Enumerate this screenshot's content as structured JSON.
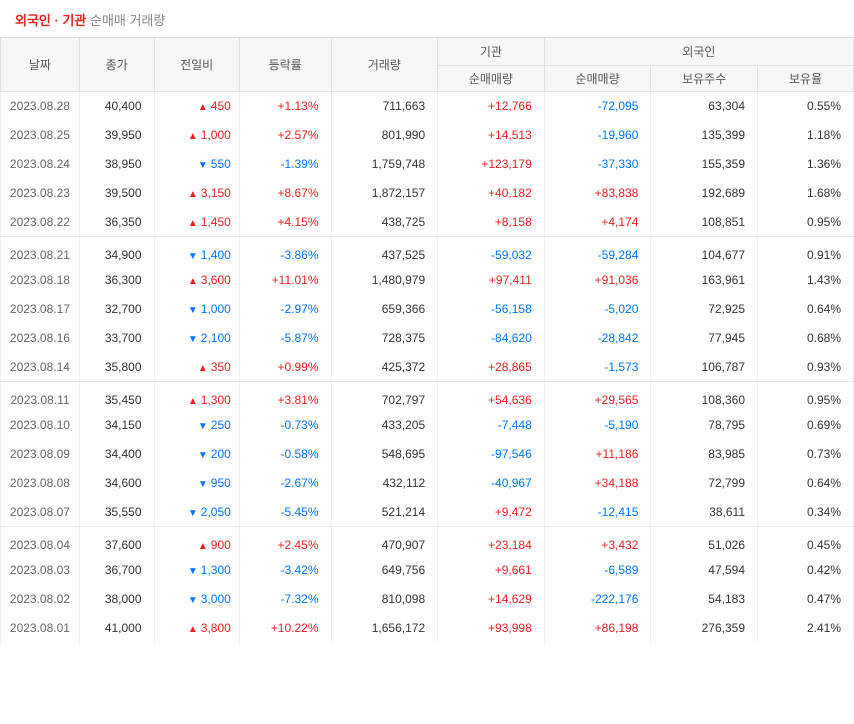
{
  "title": {
    "highlight": "외국인 · 기관",
    "rest": "순매매 거래량"
  },
  "colors": {
    "up": "#f01e1e",
    "down": "#0075ff",
    "header_bg": "#f7f7f7",
    "border": "#e0e0e0",
    "text": "#333333"
  },
  "headers": {
    "date": "날짜",
    "close": "종가",
    "change": "전일비",
    "pct": "등락률",
    "volume": "거래량",
    "inst_group": "기관",
    "inst_net": "순매매량",
    "foreign_group": "외국인",
    "foreign_net": "순매매량",
    "foreign_hold": "보유주수",
    "foreign_ratio": "보유율"
  },
  "groups": [
    [
      {
        "date": "2023.08.28",
        "close": "40,400",
        "dir": "up",
        "change": "450",
        "pct": "+1.13%",
        "volume": "711,663",
        "inst_net": "+12,766",
        "inst_dir": "up",
        "f_net": "-72,095",
        "f_dir": "down",
        "f_hold": "63,304",
        "f_ratio": "0.55%"
      },
      {
        "date": "2023.08.25",
        "close": "39,950",
        "dir": "up",
        "change": "1,000",
        "pct": "+2.57%",
        "volume": "801,990",
        "inst_net": "+14,513",
        "inst_dir": "up",
        "f_net": "-19,960",
        "f_dir": "down",
        "f_hold": "135,399",
        "f_ratio": "1.18%"
      },
      {
        "date": "2023.08.24",
        "close": "38,950",
        "dir": "down",
        "change": "550",
        "pct": "-1.39%",
        "volume": "1,759,748",
        "inst_net": "+123,179",
        "inst_dir": "up",
        "f_net": "-37,330",
        "f_dir": "down",
        "f_hold": "155,359",
        "f_ratio": "1.36%"
      },
      {
        "date": "2023.08.23",
        "close": "39,500",
        "dir": "up",
        "change": "3,150",
        "pct": "+8.67%",
        "volume": "1,872,157",
        "inst_net": "+40,182",
        "inst_dir": "up",
        "f_net": "+83,838",
        "f_dir": "up",
        "f_hold": "192,689",
        "f_ratio": "1.68%"
      },
      {
        "date": "2023.08.22",
        "close": "36,350",
        "dir": "up",
        "change": "1,450",
        "pct": "+4.15%",
        "volume": "438,725",
        "inst_net": "+8,158",
        "inst_dir": "up",
        "f_net": "+4,174",
        "f_dir": "up",
        "f_hold": "108,851",
        "f_ratio": "0.95%"
      }
    ],
    [
      {
        "date": "2023.08.21",
        "close": "34,900",
        "dir": "down",
        "change": "1,400",
        "pct": "-3.86%",
        "volume": "437,525",
        "inst_net": "-59,032",
        "inst_dir": "down",
        "f_net": "-59,284",
        "f_dir": "down",
        "f_hold": "104,677",
        "f_ratio": "0.91%"
      },
      {
        "date": "2023.08.18",
        "close": "36,300",
        "dir": "up",
        "change": "3,600",
        "pct": "+11.01%",
        "volume": "1,480,979",
        "inst_net": "+97,411",
        "inst_dir": "up",
        "f_net": "+91,036",
        "f_dir": "up",
        "f_hold": "163,961",
        "f_ratio": "1.43%"
      },
      {
        "date": "2023.08.17",
        "close": "32,700",
        "dir": "down",
        "change": "1,000",
        "pct": "-2.97%",
        "volume": "659,366",
        "inst_net": "-56,158",
        "inst_dir": "down",
        "f_net": "-5,020",
        "f_dir": "down",
        "f_hold": "72,925",
        "f_ratio": "0.64%"
      },
      {
        "date": "2023.08.16",
        "close": "33,700",
        "dir": "down",
        "change": "2,100",
        "pct": "-5.87%",
        "volume": "728,375",
        "inst_net": "-84,620",
        "inst_dir": "down",
        "f_net": "-28,842",
        "f_dir": "down",
        "f_hold": "77,945",
        "f_ratio": "0.68%"
      },
      {
        "date": "2023.08.14",
        "close": "35,800",
        "dir": "up",
        "change": "350",
        "pct": "+0.99%",
        "volume": "425,372",
        "inst_net": "+28,865",
        "inst_dir": "up",
        "f_net": "-1,573",
        "f_dir": "down",
        "f_hold": "106,787",
        "f_ratio": "0.93%"
      }
    ],
    [
      {
        "date": "2023.08.11",
        "close": "35,450",
        "dir": "up",
        "change": "1,300",
        "pct": "+3.81%",
        "volume": "702,797",
        "inst_net": "+54,636",
        "inst_dir": "up",
        "f_net": "+29,565",
        "f_dir": "up",
        "f_hold": "108,360",
        "f_ratio": "0.95%"
      },
      {
        "date": "2023.08.10",
        "close": "34,150",
        "dir": "down",
        "change": "250",
        "pct": "-0.73%",
        "volume": "433,205",
        "inst_net": "-7,448",
        "inst_dir": "down",
        "f_net": "-5,190",
        "f_dir": "down",
        "f_hold": "78,795",
        "f_ratio": "0.69%"
      },
      {
        "date": "2023.08.09",
        "close": "34,400",
        "dir": "down",
        "change": "200",
        "pct": "-0.58%",
        "volume": "548,695",
        "inst_net": "-97,546",
        "inst_dir": "down",
        "f_net": "+11,186",
        "f_dir": "up",
        "f_hold": "83,985",
        "f_ratio": "0.73%"
      },
      {
        "date": "2023.08.08",
        "close": "34,600",
        "dir": "down",
        "change": "950",
        "pct": "-2.67%",
        "volume": "432,112",
        "inst_net": "-40,967",
        "inst_dir": "down",
        "f_net": "+34,188",
        "f_dir": "up",
        "f_hold": "72,799",
        "f_ratio": "0.64%"
      },
      {
        "date": "2023.08.07",
        "close": "35,550",
        "dir": "down",
        "change": "2,050",
        "pct": "-5.45%",
        "volume": "521,214",
        "inst_net": "+9,472",
        "inst_dir": "up",
        "f_net": "-12,415",
        "f_dir": "down",
        "f_hold": "38,611",
        "f_ratio": "0.34%"
      }
    ],
    [
      {
        "date": "2023.08.04",
        "close": "37,600",
        "dir": "up",
        "change": "900",
        "pct": "+2.45%",
        "volume": "470,907",
        "inst_net": "+23,184",
        "inst_dir": "up",
        "f_net": "+3,432",
        "f_dir": "up",
        "f_hold": "51,026",
        "f_ratio": "0.45%"
      },
      {
        "date": "2023.08.03",
        "close": "36,700",
        "dir": "down",
        "change": "1,300",
        "pct": "-3.42%",
        "volume": "649,756",
        "inst_net": "+9,661",
        "inst_dir": "up",
        "f_net": "-6,589",
        "f_dir": "down",
        "f_hold": "47,594",
        "f_ratio": "0.42%"
      },
      {
        "date": "2023.08.02",
        "close": "38,000",
        "dir": "down",
        "change": "3,000",
        "pct": "-7.32%",
        "volume": "810,098",
        "inst_net": "+14,629",
        "inst_dir": "up",
        "f_net": "-222,176",
        "f_dir": "down",
        "f_hold": "54,183",
        "f_ratio": "0.47%"
      },
      {
        "date": "2023.08.01",
        "close": "41,000",
        "dir": "up",
        "change": "3,800",
        "pct": "+10.22%",
        "volume": "1,656,172",
        "inst_net": "+93,998",
        "inst_dir": "up",
        "f_net": "+86,198",
        "f_dir": "up",
        "f_hold": "276,359",
        "f_ratio": "2.41%"
      }
    ]
  ]
}
